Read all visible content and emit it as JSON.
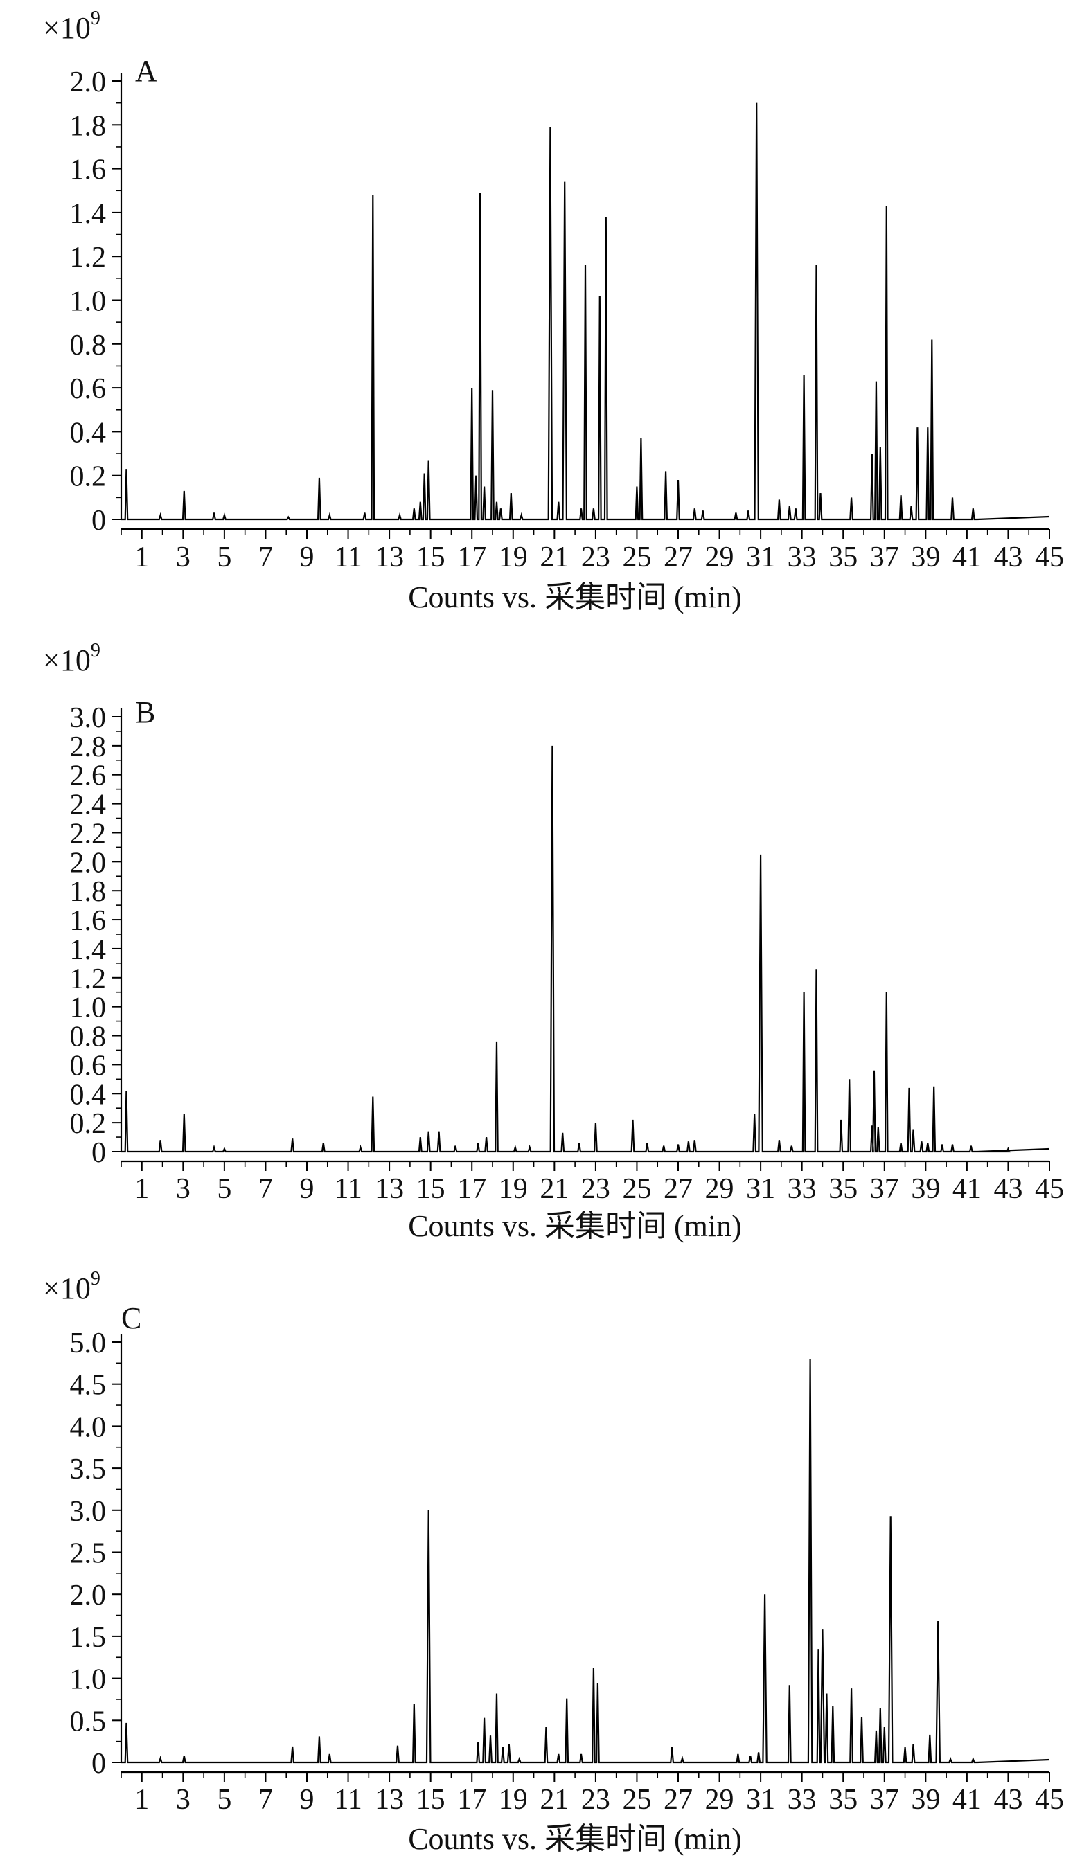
{
  "chart_data": [
    {
      "type": "line",
      "panel_label": "A",
      "multiplier": "×10",
      "multiplier_exp": "9",
      "xlabel": "Counts vs. 采集时间 (min)",
      "xlim": [
        0,
        45
      ],
      "x_tick_labels": [
        "1",
        "3",
        "5",
        "7",
        "9",
        "11",
        "13",
        "15",
        "17",
        "19",
        "21",
        "23",
        "25",
        "27",
        "29",
        "31",
        "33",
        "35",
        "37",
        "39",
        "41",
        "43",
        "45"
      ],
      "ylim": [
        0,
        2.0
      ],
      "y_ticks": [
        "0",
        "0.2",
        "0.4",
        "0.6",
        "0.8",
        "1.0",
        "1.2",
        "1.4",
        "1.6",
        "1.8",
        "2.0"
      ],
      "peaks": [
        [
          0.25,
          0.23
        ],
        [
          1.9,
          0.02
        ],
        [
          3.05,
          0.13
        ],
        [
          4.5,
          0.03
        ],
        [
          5.0,
          0.02
        ],
        [
          8.1,
          0.01
        ],
        [
          9.6,
          0.19
        ],
        [
          10.1,
          0.02
        ],
        [
          11.8,
          0.03
        ],
        [
          12.2,
          1.48
        ],
        [
          13.5,
          0.02
        ],
        [
          14.2,
          0.05
        ],
        [
          14.5,
          0.08
        ],
        [
          14.7,
          0.21
        ],
        [
          14.9,
          0.27
        ],
        [
          17.0,
          0.6
        ],
        [
          17.2,
          0.2
        ],
        [
          17.4,
          1.49
        ],
        [
          17.6,
          0.15
        ],
        [
          18.0,
          0.59
        ],
        [
          18.2,
          0.08
        ],
        [
          18.4,
          0.05
        ],
        [
          18.9,
          0.12
        ],
        [
          19.4,
          0.02
        ],
        [
          20.8,
          1.79
        ],
        [
          21.2,
          0.08
        ],
        [
          21.5,
          1.54
        ],
        [
          22.3,
          0.05
        ],
        [
          22.5,
          1.16
        ],
        [
          22.9,
          0.05
        ],
        [
          23.2,
          1.02
        ],
        [
          23.5,
          1.38
        ],
        [
          25.0,
          0.15
        ],
        [
          25.2,
          0.37
        ],
        [
          26.4,
          0.22
        ],
        [
          27.0,
          0.18
        ],
        [
          27.8,
          0.05
        ],
        [
          28.2,
          0.04
        ],
        [
          29.8,
          0.03
        ],
        [
          30.4,
          0.04
        ],
        [
          30.8,
          1.9
        ],
        [
          31.9,
          0.09
        ],
        [
          32.4,
          0.06
        ],
        [
          32.7,
          0.05
        ],
        [
          33.1,
          0.66
        ],
        [
          33.7,
          1.16
        ],
        [
          33.9,
          0.12
        ],
        [
          35.4,
          0.1
        ],
        [
          36.4,
          0.3
        ],
        [
          36.6,
          0.63
        ],
        [
          36.8,
          0.33
        ],
        [
          37.1,
          1.43
        ],
        [
          37.8,
          0.11
        ],
        [
          38.3,
          0.06
        ],
        [
          38.6,
          0.42
        ],
        [
          39.1,
          0.42
        ],
        [
          39.3,
          0.82
        ],
        [
          40.3,
          0.1
        ],
        [
          41.3,
          0.05
        ]
      ]
    },
    {
      "type": "line",
      "panel_label": "B",
      "multiplier": "×10",
      "multiplier_exp": "9",
      "xlabel": "Counts vs. 采集时间 (min)",
      "xlim": [
        0,
        45
      ],
      "x_tick_labels": [
        "1",
        "3",
        "5",
        "7",
        "9",
        "11",
        "13",
        "15",
        "17",
        "19",
        "21",
        "23",
        "25",
        "27",
        "29",
        "31",
        "33",
        "35",
        "37",
        "39",
        "41",
        "43",
        "45"
      ],
      "ylim": [
        0,
        3.0
      ],
      "y_ticks": [
        "0",
        "0.2",
        "0.4",
        "0.6",
        "0.8",
        "1.0",
        "1.2",
        "1.4",
        "1.6",
        "1.8",
        "2.0",
        "2.2",
        "2.4",
        "2.6",
        "2.8",
        "3.0"
      ],
      "peaks": [
        [
          0.25,
          0.42
        ],
        [
          1.9,
          0.08
        ],
        [
          3.05,
          0.26
        ],
        [
          4.5,
          0.03
        ],
        [
          5.0,
          0.02
        ],
        [
          8.3,
          0.09
        ],
        [
          9.8,
          0.06
        ],
        [
          11.6,
          0.03
        ],
        [
          12.2,
          0.38
        ],
        [
          14.5,
          0.1
        ],
        [
          14.9,
          0.14
        ],
        [
          15.4,
          0.14
        ],
        [
          16.2,
          0.04
        ],
        [
          17.3,
          0.06
        ],
        [
          17.7,
          0.1
        ],
        [
          18.2,
          0.76
        ],
        [
          19.1,
          0.03
        ],
        [
          19.8,
          0.03
        ],
        [
          20.9,
          2.8
        ],
        [
          21.4,
          0.13
        ],
        [
          22.2,
          0.06
        ],
        [
          23.0,
          0.2
        ],
        [
          24.8,
          0.22
        ],
        [
          25.5,
          0.06
        ],
        [
          26.3,
          0.04
        ],
        [
          27.0,
          0.05
        ],
        [
          27.5,
          0.07
        ],
        [
          27.8,
          0.08
        ],
        [
          30.7,
          0.26
        ],
        [
          31.0,
          2.05
        ],
        [
          31.9,
          0.08
        ],
        [
          32.5,
          0.04
        ],
        [
          33.1,
          1.1
        ],
        [
          33.7,
          1.26
        ],
        [
          34.9,
          0.22
        ],
        [
          35.3,
          0.5
        ],
        [
          36.4,
          0.18
        ],
        [
          36.5,
          0.56
        ],
        [
          36.7,
          0.17
        ],
        [
          37.1,
          1.1
        ],
        [
          37.8,
          0.06
        ],
        [
          38.2,
          0.44
        ],
        [
          38.4,
          0.15
        ],
        [
          38.8,
          0.07
        ],
        [
          39.1,
          0.06
        ],
        [
          39.4,
          0.45
        ],
        [
          39.8,
          0.05
        ],
        [
          40.3,
          0.05
        ],
        [
          41.2,
          0.04
        ],
        [
          43.0,
          0.02
        ]
      ]
    },
    {
      "type": "line",
      "panel_label": "C",
      "multiplier": "×10",
      "multiplier_exp": "9",
      "xlabel": "Counts vs. 采集时间 (min)",
      "xlim": [
        0,
        45
      ],
      "x_tick_labels": [
        "1",
        "3",
        "5",
        "7",
        "9",
        "11",
        "13",
        "15",
        "17",
        "19",
        "21",
        "23",
        "25",
        "27",
        "29",
        "31",
        "33",
        "35",
        "37",
        "39",
        "41",
        "43",
        "45"
      ],
      "ylim": [
        0,
        5.0
      ],
      "y_ticks": [
        "0",
        "0.5",
        "1.0",
        "1.5",
        "2.0",
        "2.5",
        "3.0",
        "3.5",
        "4.0",
        "4.5",
        "5.0"
      ],
      "peaks": [
        [
          0.25,
          0.47
        ],
        [
          1.9,
          0.05
        ],
        [
          3.05,
          0.08
        ],
        [
          8.3,
          0.19
        ],
        [
          9.6,
          0.31
        ],
        [
          10.1,
          0.1
        ],
        [
          13.4,
          0.2
        ],
        [
          14.2,
          0.7
        ],
        [
          14.9,
          3.0
        ],
        [
          17.3,
          0.24
        ],
        [
          17.6,
          0.53
        ],
        [
          17.9,
          0.32
        ],
        [
          18.2,
          0.82
        ],
        [
          18.5,
          0.18
        ],
        [
          18.8,
          0.22
        ],
        [
          19.3,
          0.04
        ],
        [
          20.6,
          0.42
        ],
        [
          21.2,
          0.1
        ],
        [
          21.6,
          0.76
        ],
        [
          22.3,
          0.1
        ],
        [
          22.9,
          1.12
        ],
        [
          23.1,
          0.94
        ],
        [
          26.7,
          0.18
        ],
        [
          27.2,
          0.05
        ],
        [
          29.9,
          0.1
        ],
        [
          30.5,
          0.08
        ],
        [
          30.9,
          0.12
        ],
        [
          31.2,
          2.0
        ],
        [
          32.4,
          0.92
        ],
        [
          33.4,
          4.8
        ],
        [
          33.8,
          1.35
        ],
        [
          34.0,
          1.58
        ],
        [
          34.2,
          0.82
        ],
        [
          34.5,
          0.67
        ],
        [
          35.4,
          0.88
        ],
        [
          35.9,
          0.54
        ],
        [
          36.6,
          0.38
        ],
        [
          36.8,
          0.65
        ],
        [
          37.0,
          0.42
        ],
        [
          37.3,
          2.93
        ],
        [
          38.0,
          0.18
        ],
        [
          38.4,
          0.22
        ],
        [
          39.2,
          0.33
        ],
        [
          39.6,
          1.68
        ],
        [
          40.2,
          0.04
        ],
        [
          41.3,
          0.04
        ]
      ]
    }
  ]
}
